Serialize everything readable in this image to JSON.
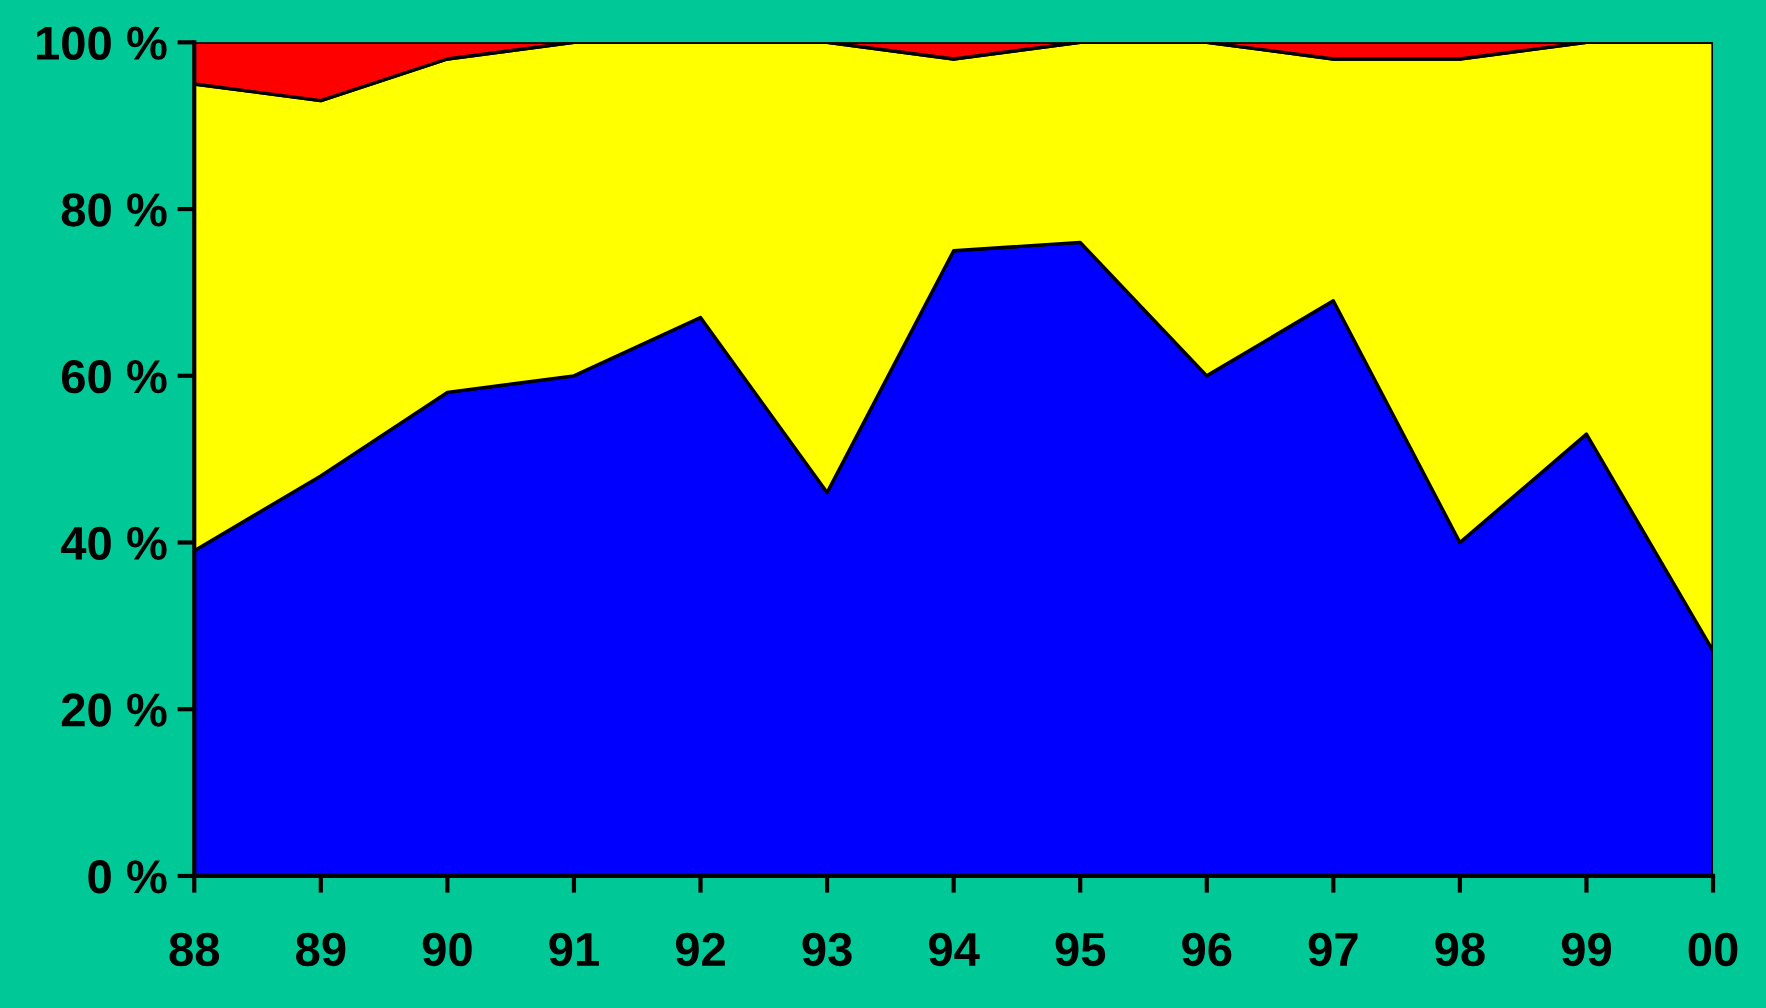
{
  "chart_data": {
    "type": "area",
    "stacked": true,
    "categories": [
      "88",
      "89",
      "90",
      "91",
      "92",
      "93",
      "94",
      "95",
      "96",
      "97",
      "98",
      "99",
      "00"
    ],
    "series": [
      {
        "color": "#0000ff",
        "values": [
          39,
          48,
          58,
          60,
          67,
          46,
          75,
          76,
          60,
          69,
          40,
          53,
          27
        ]
      },
      {
        "color": "#ffff00",
        "values": [
          56,
          45,
          40,
          40,
          33,
          54,
          23,
          24,
          40,
          29,
          58,
          47,
          73
        ]
      },
      {
        "color": "#ff0000",
        "values": [
          5,
          7,
          2,
          0,
          0,
          0,
          2,
          0,
          0,
          2,
          2,
          0,
          0
        ]
      }
    ],
    "ylim": [
      0,
      100
    ],
    "yticks": [
      {
        "value": 0,
        "label": "0 %"
      },
      {
        "value": 20,
        "label": "20 %"
      },
      {
        "value": 40,
        "label": "40 %"
      },
      {
        "value": 60,
        "label": "60 %"
      },
      {
        "value": 80,
        "label": "80 %"
      },
      {
        "value": 100,
        "label": "100 %"
      }
    ],
    "grid": false,
    "legend": false
  }
}
